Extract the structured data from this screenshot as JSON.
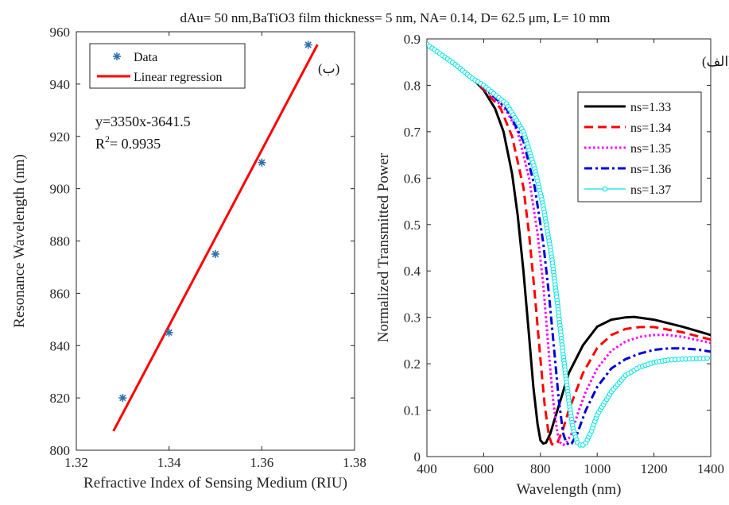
{
  "figure_title": "dAu= 50 nm,BaTiO3  film thickness= 5 nm,  NA= 0.14,  D= 62.5 μm,  L= 10 mm",
  "chart_data": [
    {
      "id": "left",
      "type": "scatter",
      "panel_label": "(ب)",
      "xlabel": "Refractive Index of Sensing Medium (RIU)",
      "ylabel": "Resonance Wavelength (nm)",
      "xlim": [
        1.32,
        1.38
      ],
      "ylim": [
        800,
        960
      ],
      "xticks": [
        1.32,
        1.34,
        1.36,
        1.38
      ],
      "xtick_labels": [
        "1.32",
        "1.34",
        "1.36",
        "1.38"
      ],
      "yticks": [
        800,
        820,
        840,
        860,
        880,
        900,
        920,
        940,
        960
      ],
      "ytick_labels": [
        "800",
        "820",
        "840",
        "860",
        "880",
        "900",
        "920",
        "940",
        "960"
      ],
      "equation": "y=3350x-3641.5",
      "r2_label": "R",
      "r2_sup": "2",
      "r2_value": "= 0.9935",
      "legend_position": "top-left",
      "series": [
        {
          "name": "Data",
          "marker": "asterisk",
          "color": "#2e6fb0",
          "x": [
            1.33,
            1.34,
            1.35,
            1.36,
            1.37
          ],
          "y": [
            820,
            845,
            875,
            910,
            955
          ]
        },
        {
          "name": "Linear regression",
          "line": "solid",
          "color": "#ff0000",
          "x": [
            1.328,
            1.372
          ],
          "y": [
            807.3,
            955.1
          ]
        }
      ]
    },
    {
      "id": "right",
      "type": "line",
      "panel_label": "(الف)",
      "xlabel": "Wavelength (nm)",
      "ylabel": "Normalized Transmitted Power",
      "xlim": [
        400,
        1400
      ],
      "ylim": [
        0,
        0.9
      ],
      "xticks": [
        400,
        600,
        800,
        1000,
        1200,
        1400
      ],
      "xtick_labels": [
        "400",
        "600",
        "800",
        "1000",
        "1200",
        "1400"
      ],
      "yticks": [
        0,
        0.1,
        0.2,
        0.3,
        0.4,
        0.5,
        0.6,
        0.7,
        0.8,
        0.9
      ],
      "ytick_labels": [
        "0",
        "0.1",
        "0.2",
        "0.3",
        "0.4",
        "0.5",
        "0.6",
        "0.7",
        "0.8",
        "0.9"
      ],
      "legend_position": "top-right",
      "series": [
        {
          "name": "ns=1.33",
          "color": "#000000",
          "style": "solid",
          "x": [
            400,
            500,
            560,
            600,
            640,
            670,
            700,
            720,
            740,
            760,
            775,
            790,
            800,
            810,
            820,
            835,
            850,
            870,
            900,
            950,
            1000,
            1050,
            1100,
            1130,
            1200,
            1300,
            1400
          ],
          "y": [
            0.888,
            0.845,
            0.815,
            0.79,
            0.75,
            0.7,
            0.61,
            0.52,
            0.4,
            0.26,
            0.15,
            0.07,
            0.035,
            0.028,
            0.03,
            0.05,
            0.08,
            0.12,
            0.18,
            0.24,
            0.28,
            0.295,
            0.3,
            0.301,
            0.295,
            0.28,
            0.262
          ]
        },
        {
          "name": "ns=1.34",
          "color": "#ff0000",
          "style": "dash",
          "x": [
            400,
            500,
            560,
            600,
            660,
            700,
            740,
            760,
            780,
            800,
            815,
            830,
            840,
            850,
            860,
            880,
            900,
            950,
            1000,
            1050,
            1100,
            1150,
            1200,
            1300,
            1400
          ],
          "y": [
            0.888,
            0.845,
            0.815,
            0.792,
            0.75,
            0.69,
            0.58,
            0.48,
            0.35,
            0.21,
            0.11,
            0.045,
            0.027,
            0.025,
            0.03,
            0.06,
            0.1,
            0.18,
            0.234,
            0.262,
            0.275,
            0.279,
            0.279,
            0.268,
            0.252
          ]
        },
        {
          "name": "ns=1.35",
          "color": "#ff00ff",
          "style": "dot",
          "x": [
            400,
            500,
            560,
            600,
            680,
            720,
            760,
            790,
            810,
            830,
            845,
            860,
            870,
            880,
            890,
            910,
            930,
            960,
            1000,
            1050,
            1100,
            1150,
            1200,
            1250,
            1300,
            1400
          ],
          "y": [
            0.888,
            0.845,
            0.815,
            0.795,
            0.745,
            0.7,
            0.6,
            0.48,
            0.37,
            0.22,
            0.12,
            0.05,
            0.03,
            0.025,
            0.028,
            0.05,
            0.09,
            0.14,
            0.19,
            0.228,
            0.248,
            0.258,
            0.262,
            0.262,
            0.258,
            0.245
          ]
        },
        {
          "name": "ns=1.36",
          "color": "#0000d8",
          "style": "dashdot",
          "x": [
            400,
            500,
            560,
            600,
            680,
            740,
            780,
            810,
            830,
            850,
            865,
            880,
            890,
            900,
            910,
            930,
            960,
            1000,
            1050,
            1100,
            1150,
            1200,
            1250,
            1300,
            1350,
            1400
          ],
          "y": [
            0.888,
            0.845,
            0.815,
            0.797,
            0.75,
            0.68,
            0.58,
            0.46,
            0.35,
            0.22,
            0.12,
            0.05,
            0.032,
            0.025,
            0.028,
            0.05,
            0.1,
            0.15,
            0.19,
            0.21,
            0.222,
            0.23,
            0.233,
            0.233,
            0.231,
            0.226
          ]
        },
        {
          "name": "ns=1.37",
          "color": "#00e5e5",
          "style": "circles",
          "x": [
            400,
            500,
            560,
            600,
            680,
            740,
            780,
            810,
            840,
            860,
            880,
            900,
            915,
            930,
            940,
            950,
            960,
            980,
            1000,
            1050,
            1100,
            1150,
            1200,
            1250,
            1300,
            1350,
            1400
          ],
          "y": [
            0.888,
            0.845,
            0.815,
            0.8,
            0.76,
            0.7,
            0.62,
            0.54,
            0.43,
            0.33,
            0.22,
            0.12,
            0.06,
            0.03,
            0.025,
            0.025,
            0.03,
            0.055,
            0.09,
            0.14,
            0.175,
            0.193,
            0.203,
            0.208,
            0.21,
            0.211,
            0.212
          ]
        }
      ]
    }
  ]
}
